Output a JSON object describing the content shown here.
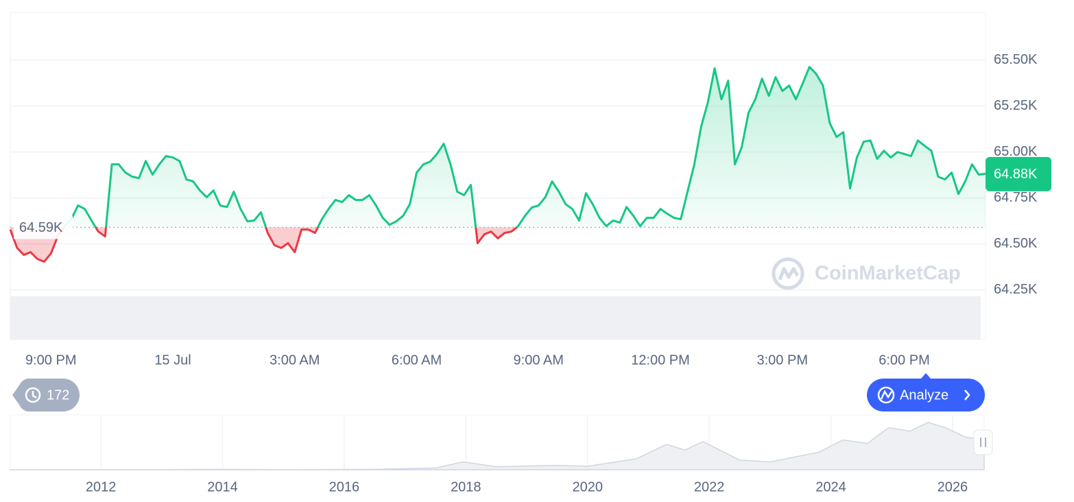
{
  "chart_data": [
    {
      "type": "line",
      "categories": [
        null,
        null,
        null,
        null,
        null,
        null,
        "9:00 PM",
        null,
        null,
        null,
        null,
        null,
        null,
        null,
        null,
        null,
        null,
        null,
        null,
        null,
        null,
        null,
        null,
        null,
        "15 Jul",
        null,
        null,
        null,
        null,
        null,
        null,
        null,
        null,
        null,
        null,
        null,
        null,
        null,
        null,
        null,
        null,
        null,
        "3:00 AM",
        null,
        null,
        null,
        null,
        null,
        null,
        null,
        null,
        null,
        null,
        null,
        null,
        null,
        null,
        null,
        null,
        null,
        "6:00 AM",
        null,
        null,
        null,
        null,
        null,
        null,
        null,
        null,
        null,
        null,
        null,
        null,
        null,
        null,
        null,
        null,
        null,
        "9:00 AM",
        null,
        null,
        null,
        null,
        null,
        null,
        null,
        null,
        null,
        null,
        null,
        null,
        null,
        null,
        null,
        null,
        null,
        "12:00 PM",
        null,
        null,
        null,
        null,
        null,
        null,
        null,
        null,
        null,
        null,
        null,
        null,
        null,
        null,
        null,
        null,
        null,
        "3:00 PM",
        null,
        null,
        null,
        null,
        null,
        null,
        null,
        null,
        null,
        null,
        null,
        null,
        null,
        null,
        null,
        null,
        null,
        "6:00 PM",
        null,
        null,
        null,
        null,
        null,
        null,
        null,
        null,
        null,
        null,
        null,
        null
      ],
      "values": [
        64578,
        64478,
        64440,
        64455,
        64418,
        64403,
        64448,
        64541,
        64597,
        64634,
        64709,
        64690,
        64627,
        64567,
        64541,
        64933,
        64933,
        64888,
        64866,
        64858,
        64951,
        64877,
        64933,
        64978,
        64970,
        64951,
        64851,
        64840,
        64791,
        64754,
        64791,
        64709,
        64701,
        64784,
        64690,
        64623,
        64627,
        64672,
        64560,
        64493,
        64478,
        64504,
        64455,
        64578,
        64578,
        64560,
        64634,
        64690,
        64739,
        64728,
        64765,
        64739,
        64739,
        64765,
        64709,
        64642,
        64604,
        64623,
        64653,
        64716,
        64888,
        64933,
        64948,
        64989,
        65045,
        64933,
        64784,
        64765,
        64821,
        64504,
        64552,
        64567,
        64530,
        64560,
        64567,
        64597,
        64653,
        64698,
        64709,
        64754,
        64840,
        64784,
        64716,
        64690,
        64627,
        64776,
        64716,
        64642,
        64597,
        64627,
        64616,
        64701,
        64653,
        64597,
        64642,
        64642,
        64690,
        64664,
        64642,
        64634,
        64784,
        64933,
        65138,
        65269,
        65455,
        65287,
        65388,
        64933,
        65026,
        65213,
        65287,
        65399,
        65306,
        65407,
        65332,
        65362,
        65287,
        65373,
        65463,
        65425,
        65362,
        65157,
        65082,
        65108,
        64802,
        64970,
        65056,
        65063,
        64963,
        65007,
        64970,
        65000,
        64989,
        64978,
        65063,
        65034,
        65007,
        64866,
        64851,
        64888,
        64772,
        64840,
        64933,
        64877,
        64882
      ],
      "ylim": [
        63980,
        65760
      ],
      "yticks": [
        {
          "value": 64250,
          "label": "64.25K"
        },
        {
          "value": 64500,
          "label": "64.50K"
        },
        {
          "value": 64750,
          "label": "64.75K"
        },
        {
          "value": 65000,
          "label": "65.00K"
        },
        {
          "value": 65250,
          "label": "65.25K"
        },
        {
          "value": 65500,
          "label": "65.50K"
        }
      ],
      "baseline": {
        "value": 64590,
        "label": "64.59K"
      },
      "last_price": {
        "value": 64880,
        "label": "64.88K"
      },
      "up_color": "#16c784",
      "down_color": "#ea3943",
      "grid": true
    },
    {
      "type": "area",
      "x": [
        2010.5,
        2011.5,
        2013.0,
        2013.9,
        2015.0,
        2016.5,
        2017.5,
        2017.95,
        2018.5,
        2019.5,
        2020.0,
        2020.8,
        2021.3,
        2021.6,
        2021.9,
        2022.5,
        2023.0,
        2023.8,
        2024.2,
        2024.6,
        2024.95,
        2025.3,
        2025.6,
        2025.9,
        2026.2,
        2026.52
      ],
      "values": [
        0,
        0.5,
        0.5,
        1,
        0.5,
        1,
        4,
        18,
        7,
        10,
        8,
        25,
        58,
        45,
        64,
        22,
        18,
        40,
        68,
        60,
        96,
        88,
        108,
        95,
        75,
        68
      ],
      "xlim": [
        2010.51,
        2026.52
      ],
      "ylim": [
        0,
        125
      ],
      "xticks": [
        2012,
        2014,
        2016,
        2018,
        2020,
        2022,
        2024,
        2026
      ],
      "color": "#cfd6e4"
    }
  ],
  "ui": {
    "history_count": "172",
    "analyze": "Analyze",
    "watermark": "CoinMarketCap"
  }
}
